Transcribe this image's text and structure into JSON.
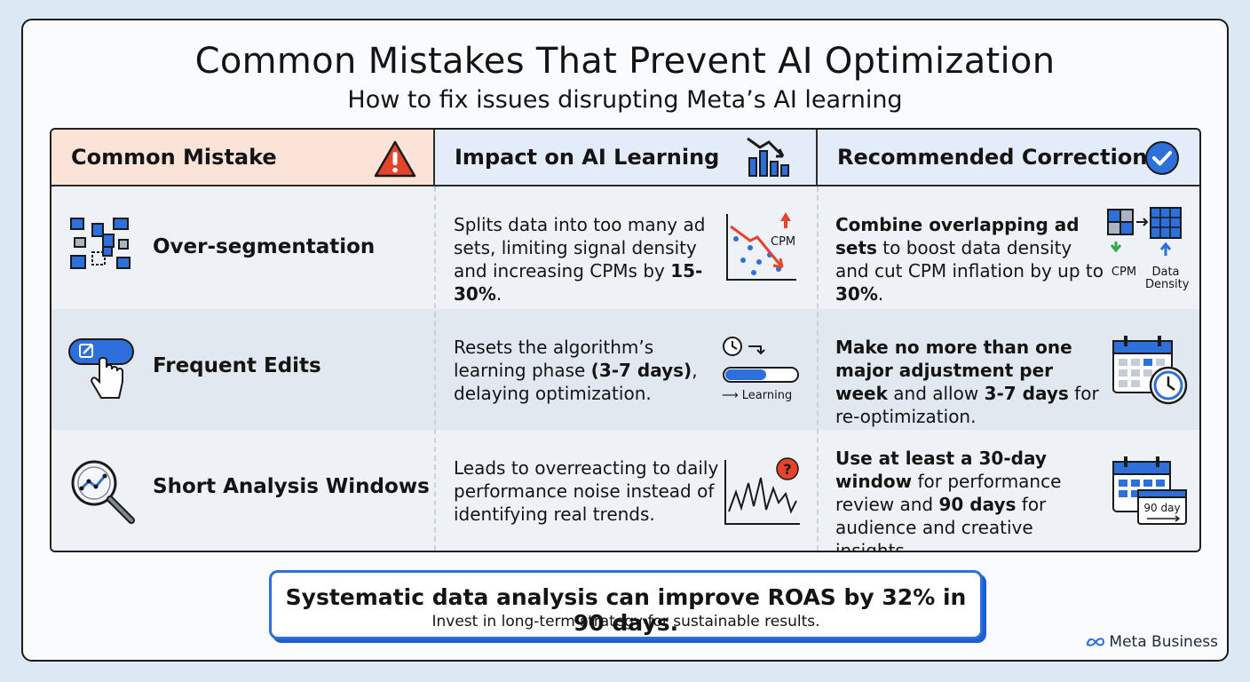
{
  "title": "Common Mistakes That Prevent AI Optimization",
  "subtitle": "How to fix issues disrupting Meta’s AI learning",
  "headers": {
    "mistake": "Common Mistake",
    "impact": "Impact on AI Learning",
    "correction": "Recommended Correction"
  },
  "rows": [
    {
      "mistake": "Over-segmentation",
      "impact_parts": [
        "Splits data into too many ad sets, limiting signal density and increasing CPMs by ",
        "15-30%",
        "."
      ],
      "impact_icon_label": "CPM",
      "fix_parts": [
        "Combine overlapping ad sets",
        " to boost data density and cut CPM inflation by up to ",
        "30%",
        "."
      ],
      "fix_icon_labels": [
        "CPM",
        "Data",
        "Density"
      ]
    },
    {
      "mistake": "Frequent Edits",
      "impact_parts": [
        "Resets the algorithm’s learning phase ",
        "(3-7 days)",
        ", delaying optimization."
      ],
      "impact_icon_label": "⟶ Learning",
      "fix_parts": [
        "Make no more than one major adjustment per week",
        " and allow ",
        "3-7 days",
        " for re-optimization."
      ]
    },
    {
      "mistake": "Short Analysis Windows",
      "impact_text": "Leads to overreacting to daily performance noise instead of identifying real trends.",
      "fix_parts": [
        "Use at least a 30-day window",
        " for performance review and ",
        "90 days",
        " for audience and creative insights."
      ],
      "fix_icon_label": "90 day"
    }
  ],
  "footer": {
    "main": "Systematic data analysis can improve ROAS by 32% in 90 days.",
    "sub": "Invest in long-term strategy for sustainable results."
  },
  "brand": "Meta Business",
  "colors": {
    "accent_blue": "#2d6fdb",
    "warning_red": "#e5432a",
    "header_peach": "#fbe3d8",
    "header_blue": "#e3ecf8"
  }
}
